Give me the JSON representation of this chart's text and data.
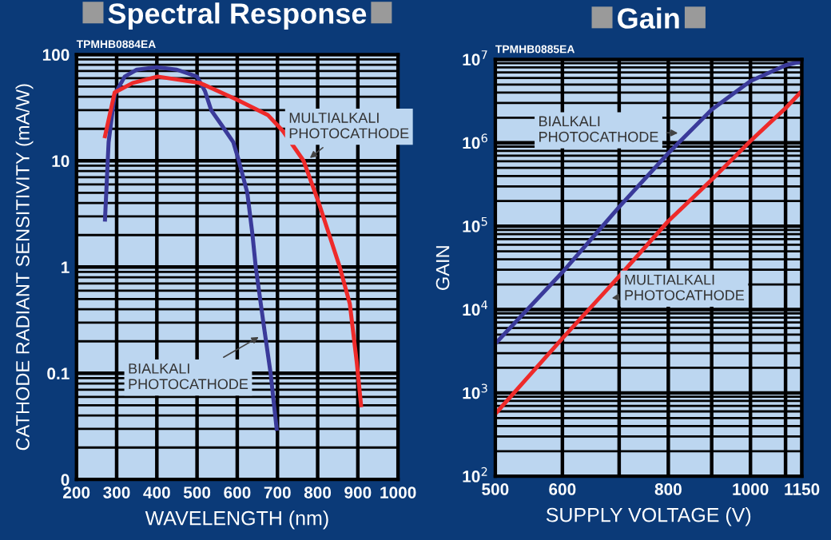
{
  "chart_data": [
    {
      "type": "line",
      "title": "Spectral Response",
      "xlabel": "WAVELENGTH (nm)",
      "ylabel": "CATHODE RADIANT SENSITIVITY (mA/W)",
      "log": "y",
      "grid": true,
      "marker": "none",
      "line_style": "solid",
      "xlim": [
        200,
        1000
      ],
      "xticks": [
        200,
        300,
        400,
        500,
        600,
        700,
        800,
        900,
        1000
      ],
      "ylim": [
        0.01,
        100
      ],
      "yticks": [
        {
          "value": 0.01,
          "label": "0"
        },
        0.1,
        1,
        10,
        100
      ],
      "series": [
        {
          "color": "#3a3a9a",
          "x": [
            271,
            280,
            295,
            320,
            350,
            400,
            450,
            500,
            520,
            535,
            560,
            590,
            604,
            625,
            638,
            646,
            665,
            683,
            698
          ],
          "values": [
            2.8,
            15,
            42,
            62,
            72,
            76,
            72,
            62,
            45,
            30,
            22,
            15,
            10,
            5,
            2,
            1,
            0.3,
            0.1,
            0.03
          ]
        },
        {
          "color": "#ee2a2a",
          "x": [
            271,
            295,
            340,
            402,
            507,
            597,
            676,
            714,
            765,
            803,
            855,
            880,
            897,
            908
          ],
          "values": [
            17,
            44,
            54,
            62,
            54,
            38,
            27,
            19,
            10,
            4,
            1,
            0.45,
            0.13,
            0.05
          ]
        }
      ],
      "annotations": [
        "TPMHB0884EA",
        {
          "text": "MULTIALKALI\nPHOTOCATHODE",
          "x": 772,
          "y": 10
        },
        {
          "text": "BIALKALI\nPHOTOCATHODE",
          "x": 663,
          "y": 0.23
        }
      ]
    },
    {
      "type": "line",
      "title": "Gain",
      "xlabel": "SUPPLY VOLTAGE (V)",
      "ylabel": "GAIN",
      "log": "xy",
      "grid": true,
      "marker": "none",
      "line_style": "solid",
      "xlim": [
        500,
        1150
      ],
      "xticks": [
        500,
        600,
        {
          "value": 700,
          "label": null
        },
        800,
        {
          "value": 900,
          "label": null
        },
        1000,
        {
          "value": 1100,
          "label": null
        },
        1150
      ],
      "ylim": [
        100,
        10000000
      ],
      "yticks": [
        {
          "value": 100,
          "label": "10$^{2}$"
        },
        {
          "value": 1000,
          "label": "10$^{3}$"
        },
        {
          "value": 10000,
          "label": "10$^{4}$"
        },
        {
          "value": 100000,
          "label": "10$^{5}$"
        },
        {
          "value": 1000000,
          "label": "10$^{6}$"
        },
        {
          "value": 10000000,
          "label": "10$^{7}$"
        }
      ],
      "series": [
        {
          "color": "#3a3a9a",
          "x": [
            500,
            600,
            700,
            800,
            900,
            1000,
            1100,
            1150
          ],
          "values": [
            3900,
            28000,
            170000,
            750000,
            2500000,
            5500000,
            8500000,
            9500000
          ]
        },
        {
          "color": "#ee2a2a",
          "x": [
            500,
            600,
            700,
            800,
            900,
            1000,
            1100,
            1150
          ],
          "values": [
            560,
            4500,
            25000,
            115000,
            360000,
            1050000,
            2600000,
            4200000
          ]
        }
      ],
      "annotations": [
        "TPMHB0885EA",
        {
          "text": "BIALKALI\nPHOTOCATHODE",
          "x": 831,
          "y": 1300000
        },
        {
          "text": "MULTIALKALI\nPHOTOCATHODE",
          "x": 678,
          "y": 13500
        }
      ]
    }
  ]
}
